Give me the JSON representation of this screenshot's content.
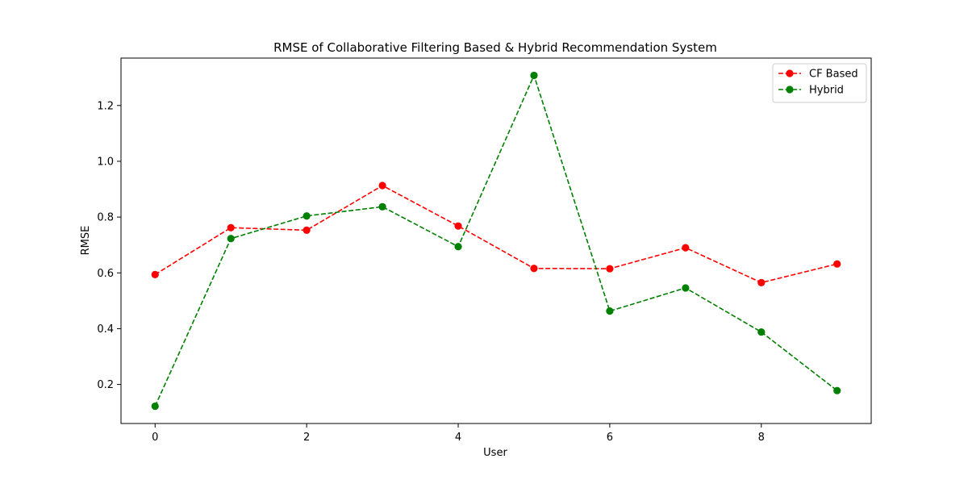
{
  "chart_data": {
    "type": "line",
    "title": "RMSE of Collaborative Filtering Based & Hybrid Recommendation System",
    "xlabel": "User",
    "ylabel": "RMSE",
    "xlim": [
      -0.45,
      9.45
    ],
    "ylim": [
      0.06,
      1.37
    ],
    "xticks": [
      0,
      2,
      4,
      6,
      8
    ],
    "xtick_labels": [
      "0",
      "2",
      "4",
      "6",
      "8"
    ],
    "yticks": [
      0.2,
      0.4,
      0.6,
      0.8,
      1.0,
      1.2
    ],
    "ytick_labels": [
      "0.2",
      "0.4",
      "0.6",
      "0.8",
      "1.0",
      "1.2"
    ],
    "grid": false,
    "legend_position": "top-right",
    "x": [
      0,
      1,
      2,
      3,
      4,
      5,
      6,
      7,
      8,
      9
    ],
    "series": [
      {
        "name": "CF Based",
        "color": "#ff0000",
        "line_style": "dashed",
        "marker": "circle",
        "values": [
          0.594,
          0.762,
          0.753,
          0.913,
          0.768,
          0.616,
          0.615,
          0.69,
          0.565,
          0.632
        ]
      },
      {
        "name": "Hybrid",
        "color": "#008000",
        "line_style": "dashed",
        "marker": "circle",
        "values": [
          0.122,
          0.723,
          0.804,
          0.837,
          0.694,
          1.308,
          0.463,
          0.546,
          0.388,
          0.178
        ]
      }
    ]
  }
}
